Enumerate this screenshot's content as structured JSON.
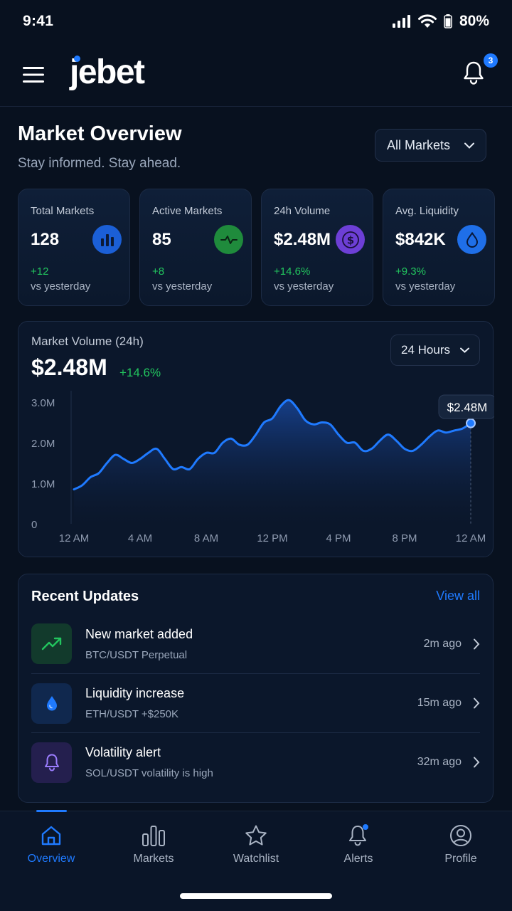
{
  "status": {
    "time": "9:41",
    "battery": "80%"
  },
  "header": {
    "logo": "jebet",
    "notification_count": "3"
  },
  "overview": {
    "title": "Market Overview",
    "subtitle": "Stay informed. Stay ahead.",
    "filter": "All Markets"
  },
  "stats": [
    {
      "label": "Total Markets",
      "value": "128",
      "change": "+12",
      "vs": "vs yesterday",
      "icon": "bar-chart-icon",
      "icon_bg": "#1b5fd6"
    },
    {
      "label": "Active Markets",
      "value": "85",
      "change": "+8",
      "vs": "vs yesterday",
      "icon": "pulse-icon",
      "icon_bg": "#1f8b3c"
    },
    {
      "label": "24h Volume",
      "value": "$2.48M",
      "change": "+14.6%",
      "vs": "vs yesterday",
      "icon": "dollar-icon",
      "icon_bg": "#6d3fd6"
    },
    {
      "label": "Avg. Liquidity",
      "value": "$842K",
      "change": "+9.3%",
      "vs": "vs yesterday",
      "icon": "drop-icon",
      "icon_bg": "#1f6fe8"
    }
  ],
  "volume_card": {
    "label": "Market Volume (24h)",
    "value": "$2.48M",
    "change": "+14.6%",
    "range": "24 Hours",
    "tooltip": "$2.48M"
  },
  "chart_data": {
    "type": "area",
    "title": "Market Volume (24h)",
    "x_ticks": [
      "12 AM",
      "4 AM",
      "8 AM",
      "12 PM",
      "4 PM",
      "8 PM",
      "12 AM"
    ],
    "y_ticks": [
      "0",
      "1.0M",
      "2.0M",
      "3.0M"
    ],
    "ylim": [
      0,
      3.0
    ],
    "unit": "M",
    "x": [
      0,
      0.5,
      1,
      1.5,
      2,
      2.5,
      3,
      3.5,
      4,
      4.5,
      5,
      5.5,
      6,
      6.5,
      7,
      7.5,
      8,
      8.5,
      9,
      9.5,
      10,
      10.5,
      11,
      11.5,
      12,
      12.5,
      13,
      13.5,
      14,
      14.5,
      15,
      15.5,
      16,
      16.5,
      17,
      17.5,
      18,
      18.5,
      19,
      19.5,
      20,
      20.5,
      21,
      21.5,
      22,
      22.5,
      23,
      23.5,
      24
    ],
    "values": [
      0.85,
      0.95,
      1.15,
      1.25,
      1.5,
      1.7,
      1.6,
      1.5,
      1.6,
      1.75,
      1.85,
      1.6,
      1.35,
      1.4,
      1.35,
      1.6,
      1.75,
      1.75,
      2.0,
      2.1,
      1.95,
      1.95,
      2.2,
      2.5,
      2.6,
      2.9,
      3.05,
      2.85,
      2.55,
      2.45,
      2.5,
      2.45,
      2.2,
      2.0,
      2.0,
      1.8,
      1.85,
      2.05,
      2.2,
      2.05,
      1.85,
      1.8,
      1.95,
      2.15,
      2.3,
      2.25,
      2.3,
      2.35,
      2.48
    ],
    "grid": false
  },
  "updates": {
    "title": "Recent Updates",
    "view_all": "View all",
    "items": [
      {
        "title": "New market added",
        "detail": "BTC/USDT Perpetual",
        "time": "2m ago",
        "icon": "trending-up-icon"
      },
      {
        "title": "Liquidity increase",
        "detail": "ETH/USDT +$250K",
        "time": "15m ago",
        "icon": "drop-icon"
      },
      {
        "title": "Volatility alert",
        "detail": "SOL/USDT volatility is high",
        "time": "32m ago",
        "icon": "bell-icon"
      }
    ]
  },
  "tabs": [
    {
      "label": "Overview",
      "icon": "home-icon"
    },
    {
      "label": "Markets",
      "icon": "bar-chart-icon"
    },
    {
      "label": "Watchlist",
      "icon": "star-icon"
    },
    {
      "label": "Alerts",
      "icon": "bell-icon"
    },
    {
      "label": "Profile",
      "icon": "user-icon"
    }
  ]
}
